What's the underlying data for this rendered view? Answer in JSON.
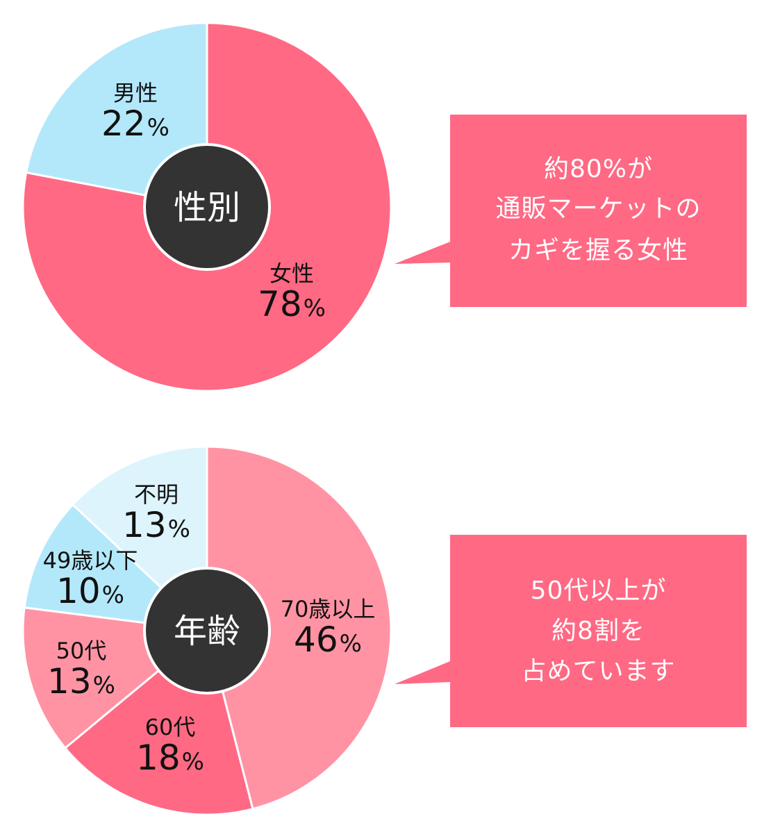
{
  "chart_data": [
    {
      "type": "pie",
      "title": "性別",
      "slices": [
        {
          "name": "女性",
          "value": 78,
          "color": "#ff6984"
        },
        {
          "name": "男性",
          "value": 22,
          "color": "#b3e8fb"
        }
      ],
      "callout": [
        "約80%が",
        "通販マーケットの",
        "カギを握る女性"
      ]
    },
    {
      "type": "pie",
      "title": "年齢",
      "slices": [
        {
          "name": "70歳以上",
          "value": 46,
          "color": "#ff93a4"
        },
        {
          "name": "60代",
          "value": 18,
          "color": "#ff6984"
        },
        {
          "name": "50代",
          "value": 13,
          "color": "#ff93a4"
        },
        {
          "name": "49歳以下",
          "value": 10,
          "color": "#b3e8fb"
        },
        {
          "name": "不明",
          "value": 13,
          "color": "#ddf4fd"
        }
      ],
      "callout": [
        "50代以上が",
        "約8割を",
        "占めています"
      ]
    }
  ],
  "colors": {
    "center": "#333333",
    "callout_bg": "#ff6984",
    "text": "#111111",
    "center_text": "#ffffff"
  },
  "percent_sign": "%"
}
